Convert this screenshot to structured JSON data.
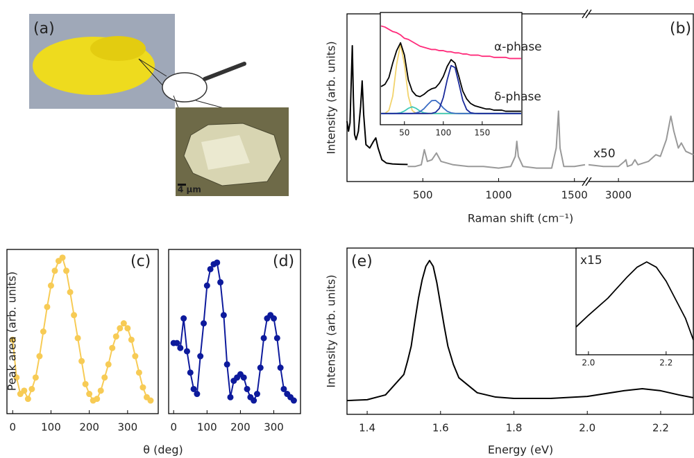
{
  "photo_panel": {
    "label": "(a)",
    "scale_bar": "4 µm"
  },
  "chart_data": [
    {
      "type": "line",
      "panel_label": "(b)",
      "x_label": "Raman shift (cm⁻¹)",
      "y_label": "Intensity (arb. units)",
      "annotation": "x50",
      "x_segments": [
        {
          "xlim": [
            0,
            1570
          ],
          "xticks": [
            500,
            1000,
            1500
          ]
        },
        {
          "xlim": [
            2800,
            3500
          ],
          "xticks": [
            3000
          ]
        }
      ],
      "ylim": [
        0,
        100
      ],
      "series": [
        {
          "color": "#000000",
          "x": [
            0,
            10,
            20,
            28,
            35,
            42,
            50,
            60,
            75,
            90,
            100,
            110,
            125,
            150,
            175,
            190,
            205,
            230,
            260,
            300,
            350,
            400
          ],
          "values": [
            36,
            30,
            35,
            60,
            81,
            50,
            28,
            25,
            30,
            45,
            60,
            40,
            22,
            20,
            24,
            26,
            20,
            13,
            11,
            10.5,
            10.3,
            10.2
          ]
        },
        {
          "color": "#999999",
          "x": [
            400,
            450,
            490,
            510,
            530,
            560,
            590,
            620,
            700,
            800,
            900,
            1000,
            1080,
            1110,
            1120,
            1130,
            1160,
            1250,
            1350,
            1380,
            1395,
            1405,
            1430,
            1500,
            1570
          ],
          "values": [
            9,
            9,
            10,
            19,
            12,
            13,
            17,
            12,
            10,
            9,
            9,
            8,
            9,
            15,
            24,
            15,
            9,
            8,
            8,
            20,
            42,
            20,
            9,
            9,
            10
          ]
        },
        {
          "color": "#999999",
          "x": [
            2800,
            2900,
            3000,
            3040,
            3050,
            3060,
            3090,
            3110,
            3130,
            3200,
            3250,
            3280,
            3320,
            3350,
            3370,
            3400,
            3420,
            3450,
            3500
          ],
          "values": [
            10,
            9,
            9,
            12,
            13,
            9,
            10,
            13,
            10,
            12,
            16,
            15,
            25,
            39,
            30,
            20,
            23,
            18,
            16
          ]
        }
      ],
      "inset": {
        "type": "line",
        "x": [
          20,
          25,
          30,
          35,
          40,
          45,
          50,
          55,
          60,
          65,
          70,
          75,
          80,
          85,
          90,
          95,
          100,
          105,
          110,
          115,
          120,
          125,
          130,
          135,
          140,
          145,
          150,
          155,
          160,
          165,
          170,
          175,
          180,
          185,
          190,
          195,
          200
        ],
        "xlim": [
          19,
          201
        ],
        "xticks": [
          50,
          100,
          150
        ],
        "ylim": [
          0,
          100
        ],
        "series": [
          {
            "color": "#f2d36b",
            "values": [
              10,
              10.2,
              12.7,
              25.5,
              53.8,
              72,
              53.8,
              25.5,
              12.7,
              10.2,
              10,
              10,
              10,
              10,
              10,
              10,
              10,
              10,
              10,
              10,
              10,
              10,
              10,
              10,
              10,
              10,
              10,
              10,
              10,
              10,
              10,
              10,
              10,
              10,
              10,
              10,
              10
            ]
          },
          {
            "color": "#3fc9b8",
            "values": [
              10,
              10,
              10,
              10,
              10.2,
              10.6,
              12.2,
              14.6,
              16,
              14.6,
              12.2,
              10.6,
              10.2,
              10,
              10,
              10,
              10,
              10,
              10,
              10,
              10,
              10,
              10,
              10,
              10,
              10,
              10,
              10,
              10,
              10,
              10,
              10,
              10,
              10,
              10,
              10,
              10
            ]
          },
          {
            "color": "#3a6cc4",
            "values": [
              10,
              10,
              10,
              10,
              10,
              10,
              10,
              10,
              10,
              10.5,
              11.6,
              14.2,
              18,
              21.4,
              21.7,
              18.9,
              14.9,
              12,
              10.6,
              10.1,
              10,
              10,
              10,
              10,
              10,
              10,
              10,
              10,
              10,
              10,
              10,
              10,
              10,
              10,
              10,
              10,
              10
            ]
          },
          {
            "color": "#1a2a9a",
            "values": [
              10,
              10,
              10,
              10,
              10,
              10,
              10,
              10,
              10,
              10,
              10,
              10,
              10,
              10.1,
              11,
              14.6,
              24.3,
              40,
              52.7,
              51,
              36.8,
              21.8,
              13.5,
              10.7,
              10.1,
              10,
              10,
              10,
              10,
              10,
              10,
              10,
              10,
              10,
              10,
              10,
              10
            ]
          },
          {
            "name": "α-phase",
            "color": "#ff2a7a",
            "values": [
              88,
              87,
              85,
              83,
              82,
              80,
              77,
              76,
              74,
              72,
              70,
              69,
              68,
              67,
              67,
              66,
              66,
              65,
              65,
              64,
              64,
              63,
              63,
              62,
              62,
              62,
              61,
              61,
              61,
              60,
              60,
              60,
              60,
              59,
              59,
              59,
              59
            ]
          },
          {
            "name": "δ-phase",
            "color": "#000000",
            "values": [
              34,
              36,
              42,
              55,
              66,
              73,
              62,
              40,
              30,
              26,
              25,
              27,
              30,
              32,
              33,
              37,
              43,
              52,
              58,
              55,
              43,
              30,
              23,
              19,
              17,
              16,
              15,
              14,
              14,
              13,
              13,
              13,
              12,
              12,
              12,
              12,
              12
            ]
          }
        ]
      }
    },
    {
      "type": "line",
      "markers": true,
      "panel_label": "(c)",
      "x_label": "θ (deg)",
      "y_label": "Peak area (arb. units)",
      "x": [
        0,
        10,
        20,
        30,
        40,
        50,
        60,
        70,
        80,
        90,
        100,
        110,
        120,
        130,
        140,
        150,
        160,
        170,
        180,
        190,
        200,
        210,
        220,
        230,
        240,
        250,
        260,
        270,
        280,
        290,
        300,
        310,
        320,
        330,
        340,
        350,
        360
      ],
      "xlim": [
        -15,
        380
      ],
      "xticks": [
        0,
        100,
        200,
        300
      ],
      "ylim": [
        0,
        100
      ],
      "series": [
        {
          "color": "#f7cb55",
          "values": [
            45,
            22,
            12,
            14,
            9,
            15,
            22,
            35,
            50,
            65,
            78,
            87,
            93,
            95,
            87,
            74,
            60,
            46,
            32,
            18,
            12,
            8,
            9,
            14,
            22,
            30,
            40,
            47,
            52,
            55,
            52,
            45,
            35,
            25,
            16,
            10,
            8
          ]
        }
      ]
    },
    {
      "type": "line",
      "markers": true,
      "panel_label": "(d)",
      "x": [
        0,
        10,
        20,
        30,
        40,
        50,
        60,
        70,
        80,
        90,
        100,
        110,
        120,
        130,
        140,
        150,
        160,
        170,
        180,
        190,
        200,
        210,
        220,
        230,
        240,
        250,
        260,
        270,
        280,
        290,
        300,
        310,
        320,
        330,
        340,
        350,
        360
      ],
      "xlim": [
        -15,
        380
      ],
      "xticks": [
        0,
        100,
        200,
        300
      ],
      "ylim": [
        0,
        100
      ],
      "series": [
        {
          "color": "#0d1a9c",
          "values": [
            43,
            43,
            40,
            58,
            38,
            25,
            15,
            12,
            35,
            55,
            78,
            88,
            91,
            92,
            80,
            60,
            30,
            10,
            20,
            22,
            24,
            22,
            15,
            10,
            8,
            12,
            28,
            46,
            58,
            60,
            58,
            46,
            28,
            15,
            12,
            10,
            8
          ]
        }
      ]
    },
    {
      "type": "line",
      "panel_label": "(e)",
      "x_label": "Energy (eV)",
      "y_label": "Intensity (arb. units)",
      "x": [
        1.345,
        1.4,
        1.45,
        1.5,
        1.51,
        1.52,
        1.53,
        1.54,
        1.55,
        1.56,
        1.57,
        1.58,
        1.59,
        1.6,
        1.61,
        1.62,
        1.635,
        1.65,
        1.7,
        1.75,
        1.8,
        1.9,
        2.0,
        2.1,
        2.15,
        2.2,
        2.25,
        2.289
      ],
      "xlim": [
        1.345,
        2.289
      ],
      "xticks": [
        1.4,
        1.6,
        1.8,
        {
          "value": 2,
          "label": "2.0"
        },
        2.2
      ],
      "ylim": [
        0,
        100
      ],
      "series": [
        {
          "color": "#000000",
          "values": [
            8.3,
            8.8,
            11.7,
            24,
            32,
            41,
            56,
            70,
            81,
            89,
            92.5,
            89,
            79,
            66,
            53,
            41,
            30,
            22,
            13,
            10.4,
            9.6,
            9.6,
            10.8,
            14.2,
            15.4,
            14.2,
            11.7,
            10
          ]
        }
      ],
      "inset": {
        "type": "line",
        "annotation": "x15",
        "x": [
          1.968,
          2.0,
          2.05,
          2.1,
          2.125,
          2.15,
          2.175,
          2.2,
          2.25,
          2.27
        ],
        "xlim": [
          1.968,
          2.27
        ],
        "xticks": [
          {
            "value": 2,
            "label": "2.0"
          },
          2.2
        ],
        "ylim": [
          0,
          100
        ],
        "series": [
          {
            "color": "#000000",
            "values": [
              26,
              37,
              53,
              73,
              82,
              87,
              82,
              69,
              34,
              14
            ]
          }
        ]
      }
    }
  ]
}
